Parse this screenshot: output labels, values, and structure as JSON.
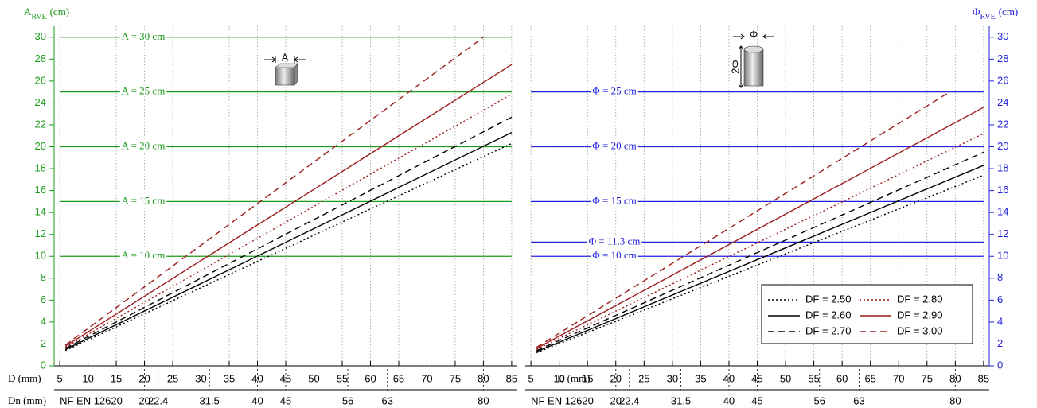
{
  "chart_data": [
    {
      "type": "line",
      "y_label": {
        "symbol": "A",
        "subscript": "RVE",
        "unit": "(cm)"
      },
      "x_label": "D (mm)",
      "dn_label": "Dn (mm)",
      "dn_note": "NF EN 12620",
      "dn_ticks": [
        20,
        22.4,
        31.5,
        40,
        45,
        56,
        63,
        80
      ],
      "axis_color": "#1a9a1a",
      "reference_color": "#1a9a1a",
      "icon": "cube",
      "icon_width_label": "A",
      "xlim": [
        4,
        86
      ],
      "xticks": [
        5,
        10,
        15,
        20,
        25,
        30,
        35,
        40,
        45,
        50,
        55,
        60,
        65,
        70,
        75,
        80,
        85
      ],
      "ylim": [
        0,
        31
      ],
      "yticks": [
        0,
        2,
        4,
        6,
        8,
        10,
        12,
        14,
        16,
        18,
        20,
        22,
        24,
        26,
        28,
        30
      ],
      "grid": true,
      "reference_lines": [
        {
          "value": 10,
          "label": "A = 10 cm"
        },
        {
          "value": 15,
          "label": "A = 15 cm"
        },
        {
          "value": 20,
          "label": "A = 20 cm"
        },
        {
          "value": 25,
          "label": "A = 25 cm"
        },
        {
          "value": 30,
          "label": "A = 30 cm"
        }
      ],
      "series": [
        {
          "color": "#000000",
          "dash": "dotted",
          "x": [
            6,
            85
          ],
          "values": [
            1.4,
            20.3
          ]
        },
        {
          "color": "#000000",
          "dash": "solid",
          "x": [
            6,
            85
          ],
          "values": [
            1.5,
            21.3
          ]
        },
        {
          "color": "#000000",
          "dash": "dashed",
          "x": [
            6,
            85
          ],
          "values": [
            1.6,
            22.7
          ]
        },
        {
          "color": "#9b1c1c",
          "dash": "dotted",
          "x": [
            6,
            85
          ],
          "values": [
            1.7,
            24.8
          ]
        },
        {
          "color": "#9b1c1c",
          "dash": "solid",
          "x": [
            6,
            85
          ],
          "values": [
            1.8,
            27.5
          ]
        },
        {
          "color": "#9b1c1c",
          "dash": "dashed",
          "x": [
            6,
            80
          ],
          "values": [
            1.9,
            30
          ]
        }
      ]
    },
    {
      "type": "line",
      "y_label": {
        "symbol": "Φ",
        "subscript": "RVE",
        "unit": "(cm)"
      },
      "x_label": "D (mm)",
      "dn_label": "Dn (mm)",
      "dn_note": "NF EN 12620",
      "dn_ticks": [
        20,
        22.4,
        31.5,
        40,
        45,
        56,
        63,
        80
      ],
      "axis_color": "#2222dd",
      "reference_color": "#2222dd",
      "icon": "cylinder",
      "icon_width_label": "Φ",
      "icon_height_label": "2Φ",
      "xlim": [
        4,
        86
      ],
      "xticks": [
        5,
        10,
        15,
        20,
        25,
        30,
        35,
        40,
        45,
        50,
        55,
        60,
        65,
        70,
        75,
        80,
        85
      ],
      "ylim": [
        0,
        31
      ],
      "yticks": [
        0,
        2,
        4,
        6,
        8,
        10,
        12,
        14,
        16,
        18,
        20,
        22,
        24,
        26,
        28,
        30
      ],
      "grid": true,
      "legend": "lower right",
      "reference_lines": [
        {
          "value": 10,
          "label": "Φ = 10 cm"
        },
        {
          "value": 11.3,
          "label": "Φ = 11.3 cm"
        },
        {
          "value": 15,
          "label": "Φ = 15 cm"
        },
        {
          "value": 20,
          "label": "Φ = 20 cm"
        },
        {
          "value": 25,
          "label": "Φ = 25 cm"
        }
      ],
      "series": [
        {
          "name": "DF = 2.50",
          "color": "#000000",
          "dash": "dotted",
          "x": [
            6,
            85
          ],
          "values": [
            1.2,
            17.4
          ]
        },
        {
          "name": "DF = 2.60",
          "color": "#000000",
          "dash": "solid",
          "x": [
            6,
            85
          ],
          "values": [
            1.3,
            18.3
          ]
        },
        {
          "name": "DF = 2.70",
          "color": "#000000",
          "dash": "dashed",
          "x": [
            6,
            85
          ],
          "values": [
            1.4,
            19.5
          ]
        },
        {
          "name": "DF = 2.80",
          "color": "#9b1c1c",
          "dash": "dotted",
          "x": [
            6,
            85
          ],
          "values": [
            1.5,
            21.2
          ]
        },
        {
          "name": "DF = 2.90",
          "color": "#9b1c1c",
          "dash": "solid",
          "x": [
            6,
            85
          ],
          "values": [
            1.6,
            23.6
          ]
        },
        {
          "name": "DF = 3.00",
          "color": "#9b1c1c",
          "dash": "dashed",
          "x": [
            6,
            79
          ],
          "values": [
            1.7,
            25
          ]
        }
      ]
    }
  ]
}
